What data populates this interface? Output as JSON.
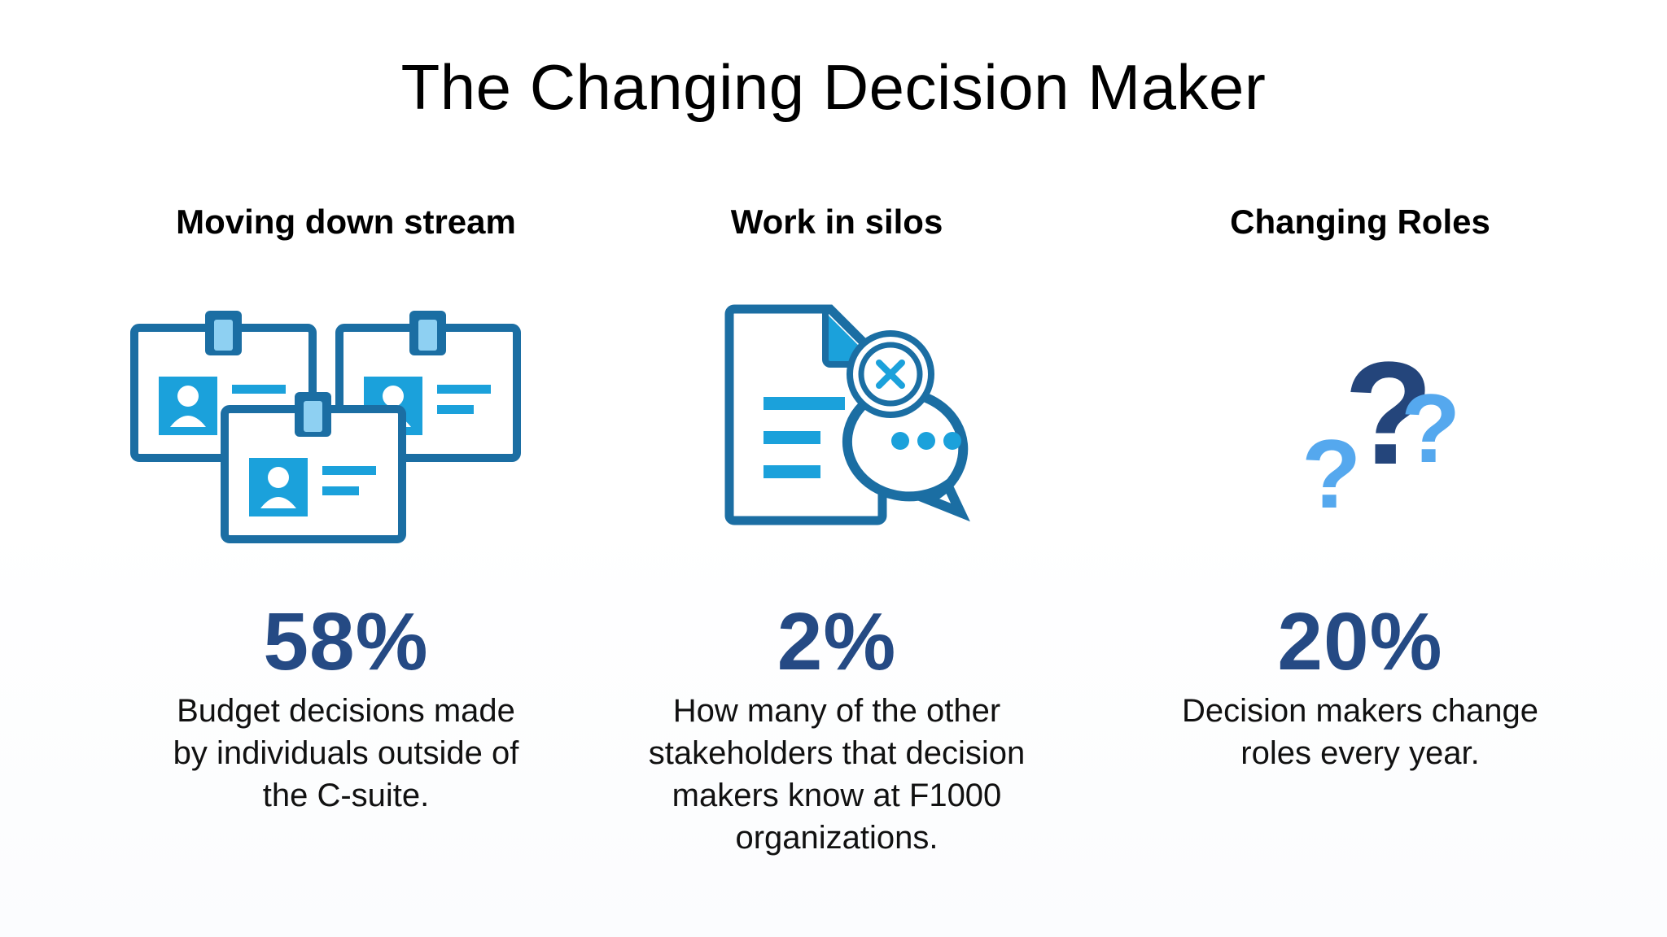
{
  "title": "The Changing Decision Maker",
  "columns": [
    {
      "heading": "Moving down stream",
      "icon": "id-badges-icon",
      "stat": "58%",
      "description_lines": [
        "Budget decisions made",
        "by individuals outside of",
        "the C-suite."
      ]
    },
    {
      "heading": "Work in silos",
      "icon": "document-chat-icon",
      "stat": "2%",
      "description_lines": [
        "How many of the other",
        "stakeholders that decision",
        "makers know at F1000",
        "organizations."
      ]
    },
    {
      "heading": "Changing Roles",
      "icon": "question-marks-icon",
      "stat": "20%",
      "description_lines": [
        "Decision makers change",
        "roles every year."
      ]
    }
  ],
  "colors": {
    "stat": "#254a84",
    "icon_dark": "#1b6ea3",
    "icon_light": "#1ba1db",
    "icon_navy": "#24457b",
    "icon_sky": "#55a8ee"
  }
}
